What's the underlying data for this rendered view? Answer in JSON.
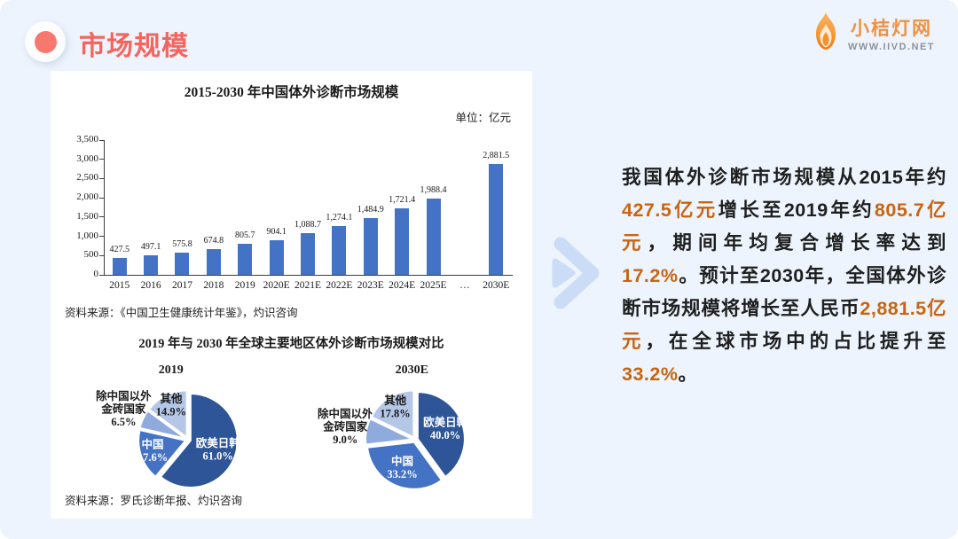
{
  "page": {
    "title": "市场规模"
  },
  "logo": {
    "name": "小桔灯网",
    "url": "WWW.IIVD.NET"
  },
  "colors": {
    "background": "#edf4fd",
    "card": "#ffffff",
    "title_red": "#f5645d",
    "bar_blue": "#4472c4",
    "pie_palette": [
      "#2e5597",
      "#4472c4",
      "#8faadc",
      "#b4c7e7"
    ],
    "arrow_blue": "#cbddf6",
    "highlight_orange": "#c8650f"
  },
  "chart_data": [
    {
      "type": "bar",
      "title": "2015-2030 年中国体外诊断市场规模",
      "unit_label": "单位：亿元",
      "categories": [
        "2015",
        "2016",
        "2017",
        "2018",
        "2019",
        "2020E",
        "2021E",
        "2022E",
        "2023E",
        "2024E",
        "2025E",
        "…",
        "2030E"
      ],
      "values": [
        427.5,
        497.1,
        575.8,
        674.8,
        805.7,
        904.1,
        1088.7,
        1274.1,
        1484.9,
        1721.4,
        1988.4,
        null,
        2881.5
      ],
      "value_labels": [
        "427.5",
        "497.1",
        "575.8",
        "674.8",
        "805.7",
        "904.1",
        "1,088.7",
        "1,274.1",
        "1,484.9",
        "1,721.4",
        "1,988.4",
        "",
        "2,881.5"
      ],
      "xlabel": "",
      "ylabel": "",
      "ylim": [
        0,
        3500
      ],
      "ytick_step": 500,
      "ytick_labels": [
        "0",
        "500",
        "1,000",
        "1,500",
        "2,000",
        "2,500",
        "3,000",
        "3,500"
      ],
      "grid": false,
      "legend": "none",
      "bar_color": "#4472c4",
      "source": "资料来源：《中国卫生健康统计年鉴》，灼识咨询"
    },
    {
      "type": "pie",
      "group_title": "2019 年与 2030 年全球主要地区体外诊断市场规模对比",
      "title": "2019",
      "slices": [
        {
          "label": "欧美日韩",
          "label_lines": [
            "欧美日韩"
          ],
          "value": 61.0,
          "pct_label": "61.0%",
          "color": "#2e5597",
          "label_placement": "inside",
          "label_color": "#ffffff"
        },
        {
          "label": "中国",
          "label_lines": [
            "中国"
          ],
          "value": 17.6,
          "pct_label": "17.6%",
          "color": "#4472c4",
          "label_placement": "inside",
          "label_color": "#ffffff"
        },
        {
          "label": "除中国以外金砖国家",
          "label_lines": [
            "除中国以外",
            "金砖国家"
          ],
          "value": 6.5,
          "pct_label": "6.5%",
          "color": "#8faadc",
          "label_placement": "outside",
          "label_color": "#1a1a1a"
        },
        {
          "label": "其他",
          "label_lines": [
            "其他"
          ],
          "value": 14.9,
          "pct_label": "14.9%",
          "color": "#b4c7e7",
          "label_placement": "inside",
          "label_color": "#1a1a1a"
        }
      ],
      "source": "资料来源：罗氏诊断年报、灼识咨询"
    },
    {
      "type": "pie",
      "title": "2030E",
      "slices": [
        {
          "label": "欧美日韩",
          "label_lines": [
            "欧美日韩"
          ],
          "value": 40.0,
          "pct_label": "40.0%",
          "color": "#2e5597",
          "label_placement": "inside",
          "label_color": "#ffffff"
        },
        {
          "label": "中国",
          "label_lines": [
            "中国"
          ],
          "value": 33.2,
          "pct_label": "33.2%",
          "color": "#4472c4",
          "label_placement": "inside",
          "label_color": "#ffffff"
        },
        {
          "label": "除中国以外金砖国家",
          "label_lines": [
            "除中国以外",
            "金砖国家"
          ],
          "value": 9.0,
          "pct_label": "9.0%",
          "color": "#8faadc",
          "label_placement": "outside",
          "label_color": "#1a1a1a"
        },
        {
          "label": "其他",
          "label_lines": [
            "其他"
          ],
          "value": 17.8,
          "pct_label": "17.8%",
          "color": "#b4c7e7",
          "label_placement": "inside",
          "label_color": "#1a1a1a"
        }
      ],
      "source": "资料来源：罗氏诊断年报、灼识咨询"
    }
  ],
  "summary": {
    "segments": [
      {
        "t": "我国体外诊断市场规模从2015年约",
        "h": false
      },
      {
        "t": "427.5亿元",
        "h": true
      },
      {
        "t": "增长至2019年约",
        "h": false
      },
      {
        "t": "805.7亿元",
        "h": true
      },
      {
        "t": "，期间年均复合增长率达到",
        "h": false
      },
      {
        "t": "17.2%",
        "h": true
      },
      {
        "t": "。预计至2030年，全国体外诊断市场规模将增长至人民币",
        "h": false
      },
      {
        "t": "2,881.5亿元",
        "h": true
      },
      {
        "t": "，在全球市场中的占比提升至",
        "h": false
      },
      {
        "t": "33.2%",
        "h": true
      },
      {
        "t": "。",
        "h": false
      }
    ]
  }
}
